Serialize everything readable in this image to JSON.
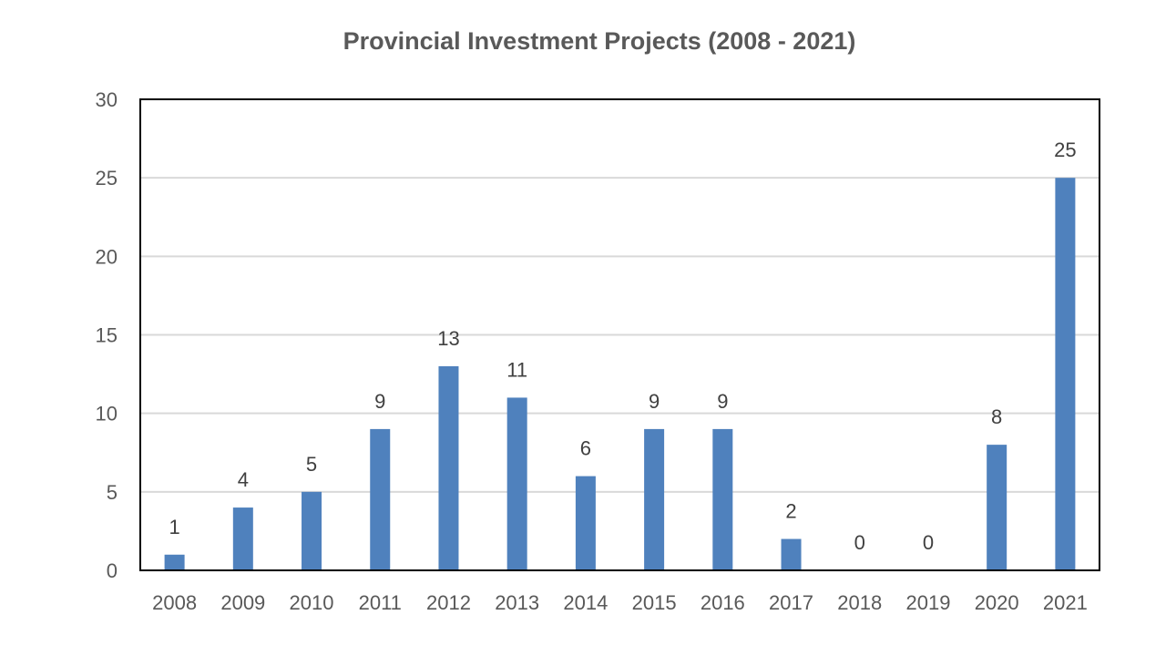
{
  "chart_data": {
    "type": "bar",
    "title": "Provincial Investment Projects (2008 - 2021)",
    "xlabel": "",
    "ylabel": "",
    "categories": [
      "2008",
      "2009",
      "2010",
      "2011",
      "2012",
      "2013",
      "2014",
      "2015",
      "2016",
      "2017",
      "2018",
      "2019",
      "2020",
      "2021"
    ],
    "values": [
      1,
      4,
      5,
      9,
      13,
      11,
      6,
      9,
      9,
      2,
      0,
      0,
      8,
      25
    ],
    "ylim": [
      0,
      30
    ],
    "yticks": [
      0,
      5,
      10,
      15,
      20,
      25,
      30
    ],
    "grid": true,
    "legend": "none",
    "data_labels": true,
    "colors": {
      "bar": "#4F81BD",
      "grid": "#D9D9D9",
      "frame": "#000000",
      "text": "#595959"
    }
  }
}
